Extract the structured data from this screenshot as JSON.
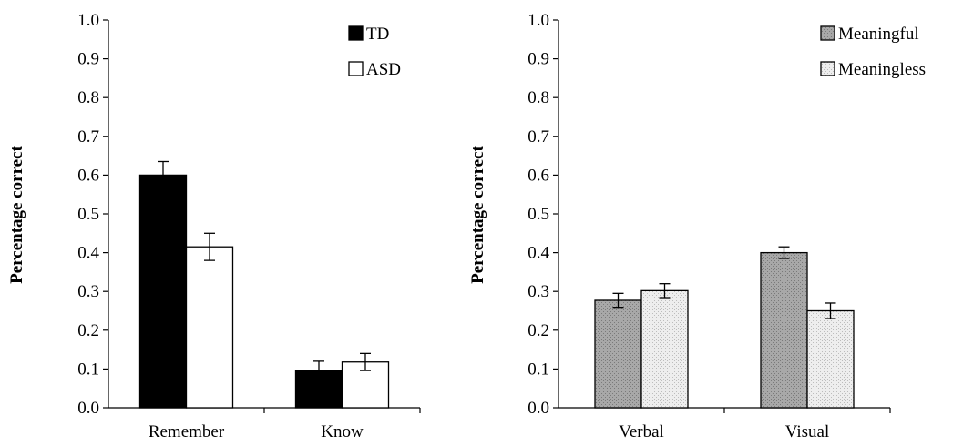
{
  "chart_data": [
    {
      "type": "bar",
      "categories": [
        "Remember",
        "Know"
      ],
      "series": [
        {
          "name": "TD",
          "values": [
            0.6,
            0.095
          ],
          "errors": [
            0.035,
            0.025
          ]
        },
        {
          "name": "ASD",
          "values": [
            0.415,
            0.118
          ],
          "errors": [
            0.035,
            0.022
          ]
        }
      ],
      "title": "",
      "xlabel": "",
      "ylabel": "Percentage correct",
      "ylim": [
        0,
        1.0
      ],
      "yticks": [
        "0.0",
        "0.1",
        "0.2",
        "0.3",
        "0.4",
        "0.5",
        "0.6",
        "0.7",
        "0.8",
        "0.9",
        "1.0"
      ],
      "legend_position": "top-right",
      "grid": false,
      "colors": [
        "#000000",
        "#ffffff"
      ]
    },
    {
      "type": "bar",
      "categories": [
        "Verbal",
        "Visual"
      ],
      "series": [
        {
          "name": "Meaningful",
          "values": [
            0.277,
            0.4
          ],
          "errors": [
            0.018,
            0.015
          ]
        },
        {
          "name": "Meaningless",
          "values": [
            0.302,
            0.25
          ],
          "errors": [
            0.018,
            0.02
          ]
        }
      ],
      "title": "",
      "xlabel": "",
      "ylabel": "Percentage correct",
      "ylim": [
        0,
        1.0
      ],
      "yticks": [
        "0.0",
        "0.1",
        "0.2",
        "0.3",
        "0.4",
        "0.5",
        "0.6",
        "0.7",
        "0.8",
        "0.9",
        "1.0"
      ],
      "legend_position": "top-right",
      "grid": false,
      "colors": [
        "#a6a6a6",
        "#e6e6e6"
      ]
    }
  ]
}
